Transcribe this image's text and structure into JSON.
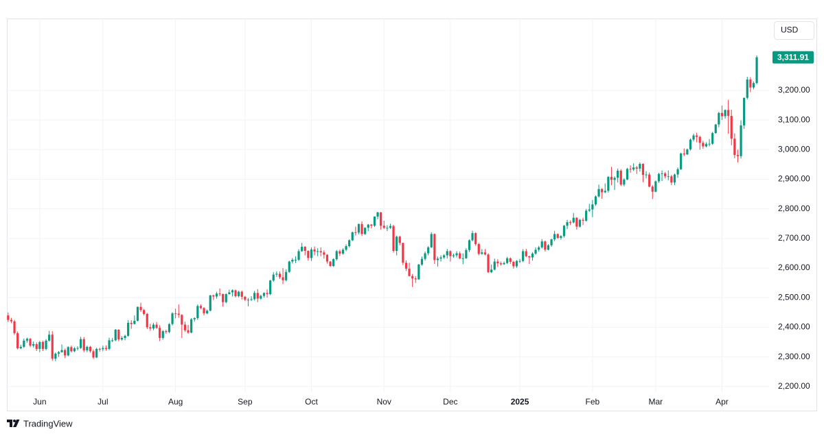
{
  "chart_data": {
    "type": "candlestick",
    "currency": "USD",
    "brand": "TradingView",
    "last_value_label": "3,311.91",
    "up_color": "#089981",
    "down_color": "#f23645",
    "grid": true,
    "xlim": [
      -0.4,
      240.9
    ],
    "xticks": [
      {
        "value": 10,
        "label": "Jun"
      },
      {
        "value": 30,
        "label": "Jul"
      },
      {
        "value": 53,
        "label": "Aug"
      },
      {
        "value": 75,
        "label": "Sep"
      },
      {
        "value": 96,
        "label": "Oct"
      },
      {
        "value": 119,
        "label": "Nov"
      },
      {
        "value": 140,
        "label": "Dec"
      },
      {
        "value": 162,
        "label": "2025"
      },
      {
        "value": 185,
        "label": "Feb"
      },
      {
        "value": 205,
        "label": "Mar"
      },
      {
        "value": 226,
        "label": "Apr"
      }
    ],
    "ylim": [
      2181,
      3443
    ],
    "yticks": [
      {
        "value": 2200,
        "label": "2,200.00"
      },
      {
        "value": 2300,
        "label": "2,300.00"
      },
      {
        "value": 2400,
        "label": "2,400.00"
      },
      {
        "value": 2500,
        "label": "2,500.00"
      },
      {
        "value": 2600,
        "label": "2,600.00"
      },
      {
        "value": 2700,
        "label": "2,700.00"
      },
      {
        "value": 2800,
        "label": "2,800.00"
      },
      {
        "value": 2900,
        "label": "2,900.00"
      },
      {
        "value": 3000,
        "label": "3,000.00"
      },
      {
        "value": 3100,
        "label": "3,100.00"
      },
      {
        "value": 3200,
        "label": "3,200.00"
      }
    ],
    "candles": [
      [
        2440,
        2450,
        2418,
        2425
      ],
      [
        2425,
        2432,
        2414,
        2420
      ],
      [
        2420,
        2425,
        2374,
        2380
      ],
      [
        2380,
        2386,
        2325,
        2329
      ],
      [
        2329,
        2341,
        2326,
        2334
      ],
      [
        2334,
        2362,
        2330,
        2355
      ],
      [
        2355,
        2365,
        2348,
        2361
      ],
      [
        2361,
        2364,
        2333,
        2338
      ],
      [
        2338,
        2352,
        2332,
        2343
      ],
      [
        2343,
        2349,
        2320,
        2327
      ],
      [
        2327,
        2354,
        2316,
        2350
      ],
      [
        2350,
        2355,
        2320,
        2327
      ],
      [
        2327,
        2360,
        2322,
        2355
      ],
      [
        2355,
        2388,
        2352,
        2375
      ],
      [
        2375,
        2387,
        2287,
        2294
      ],
      [
        2294,
        2315,
        2286,
        2311
      ],
      [
        2311,
        2320,
        2300,
        2316
      ],
      [
        2316,
        2342,
        2314,
        2323
      ],
      [
        2323,
        2328,
        2296,
        2305
      ],
      [
        2305,
        2336,
        2302,
        2333
      ],
      [
        2333,
        2338,
        2315,
        2319
      ],
      [
        2319,
        2333,
        2316,
        2329
      ],
      [
        2329,
        2336,
        2322,
        2330
      ],
      [
        2330,
        2368,
        2327,
        2360
      ],
      [
        2360,
        2367,
        2316,
        2322
      ],
      [
        2322,
        2338,
        2316,
        2334
      ],
      [
        2334,
        2337,
        2314,
        2319
      ],
      [
        2319,
        2325,
        2293,
        2298
      ],
      [
        2298,
        2331,
        2296,
        2327
      ],
      [
        2327,
        2331,
        2318,
        2326
      ],
      [
        2326,
        2338,
        2319,
        2330
      ],
      [
        2330,
        2339,
        2321,
        2327
      ],
      [
        2327,
        2365,
        2323,
        2356
      ],
      [
        2356,
        2364,
        2350,
        2356
      ],
      [
        2356,
        2394,
        2353,
        2392
      ],
      [
        2392,
        2393,
        2353,
        2359
      ],
      [
        2359,
        2370,
        2355,
        2364
      ],
      [
        2364,
        2375,
        2356,
        2371
      ],
      [
        2371,
        2424,
        2368,
        2415
      ],
      [
        2415,
        2424,
        2395,
        2411
      ],
      [
        2411,
        2440,
        2410,
        2422
      ],
      [
        2422,
        2470,
        2420,
        2469
      ],
      [
        2469,
        2483,
        2452,
        2458
      ],
      [
        2458,
        2462,
        2440,
        2445
      ],
      [
        2445,
        2449,
        2394,
        2400
      ],
      [
        2400,
        2412,
        2388,
        2396
      ],
      [
        2396,
        2415,
        2390,
        2409
      ],
      [
        2409,
        2418,
        2395,
        2398
      ],
      [
        2398,
        2407,
        2353,
        2364
      ],
      [
        2364,
        2391,
        2358,
        2387
      ],
      [
        2387,
        2392,
        2378,
        2384
      ],
      [
        2384,
        2414,
        2380,
        2411
      ],
      [
        2411,
        2451,
        2406,
        2447
      ],
      [
        2447,
        2463,
        2430,
        2446
      ],
      [
        2446,
        2477,
        2432,
        2442
      ],
      [
        2442,
        2444,
        2364,
        2409
      ],
      [
        2409,
        2419,
        2384,
        2390
      ],
      [
        2390,
        2408,
        2378,
        2382
      ],
      [
        2382,
        2431,
        2380,
        2427
      ],
      [
        2427,
        2434,
        2419,
        2431
      ],
      [
        2431,
        2477,
        2425,
        2472
      ],
      [
        2472,
        2477,
        2461,
        2465
      ],
      [
        2465,
        2468,
        2440,
        2447
      ],
      [
        2447,
        2460,
        2444,
        2456
      ],
      [
        2456,
        2509,
        2454,
        2508
      ],
      [
        2508,
        2510,
        2492,
        2504
      ],
      [
        2504,
        2520,
        2497,
        2514
      ],
      [
        2514,
        2531,
        2505,
        2512
      ],
      [
        2512,
        2514,
        2470,
        2485
      ],
      [
        2485,
        2515,
        2481,
        2512
      ],
      [
        2512,
        2527,
        2511,
        2518
      ],
      [
        2518,
        2528,
        2504,
        2525
      ],
      [
        2525,
        2527,
        2501,
        2505
      ],
      [
        2505,
        2524,
        2501,
        2520
      ],
      [
        2520,
        2524,
        2494,
        2503
      ],
      [
        2503,
        2506,
        2489,
        2493
      ],
      [
        2493,
        2499,
        2471,
        2493
      ],
      [
        2493,
        2505,
        2489,
        2495
      ],
      [
        2495,
        2523,
        2490,
        2516
      ],
      [
        2516,
        2529,
        2485,
        2497
      ],
      [
        2497,
        2510,
        2493,
        2506
      ],
      [
        2506,
        2518,
        2500,
        2516
      ],
      [
        2516,
        2528,
        2500,
        2512
      ],
      [
        2512,
        2560,
        2509,
        2558
      ],
      [
        2558,
        2586,
        2554,
        2578
      ],
      [
        2578,
        2589,
        2570,
        2581
      ],
      [
        2581,
        2589,
        2563,
        2569
      ],
      [
        2569,
        2600,
        2546,
        2559
      ],
      [
        2559,
        2596,
        2555,
        2587
      ],
      [
        2587,
        2625,
        2584,
        2622
      ],
      [
        2622,
        2634,
        2615,
        2628
      ],
      [
        2628,
        2640,
        2617,
        2628
      ],
      [
        2628,
        2664,
        2624,
        2657
      ],
      [
        2657,
        2685,
        2655,
        2672
      ],
      [
        2672,
        2674,
        2643,
        2658
      ],
      [
        2658,
        2660,
        2625,
        2634
      ],
      [
        2634,
        2670,
        2624,
        2663
      ],
      [
        2663,
        2673,
        2643,
        2656
      ],
      [
        2656,
        2667,
        2640,
        2657
      ],
      [
        2657,
        2670,
        2640,
        2653
      ],
      [
        2653,
        2660,
        2632,
        2645
      ],
      [
        2645,
        2647,
        2615,
        2622
      ],
      [
        2622,
        2624,
        2604,
        2607
      ],
      [
        2607,
        2633,
        2604,
        2630
      ],
      [
        2630,
        2661,
        2625,
        2657
      ],
      [
        2657,
        2662,
        2641,
        2649
      ],
      [
        2649,
        2667,
        2645,
        2662
      ],
      [
        2662,
        2680,
        2657,
        2674
      ],
      [
        2674,
        2697,
        2670,
        2694
      ],
      [
        2694,
        2723,
        2691,
        2721
      ],
      [
        2721,
        2740,
        2710,
        2720
      ],
      [
        2720,
        2750,
        2714,
        2749
      ],
      [
        2749,
        2758,
        2708,
        2715
      ],
      [
        2715,
        2738,
        2712,
        2736
      ],
      [
        2736,
        2749,
        2725,
        2747
      ],
      [
        2747,
        2749,
        2734,
        2743
      ],
      [
        2743,
        2775,
        2739,
        2774
      ],
      [
        2774,
        2790,
        2765,
        2788
      ],
      [
        2788,
        2790,
        2730,
        2743
      ],
      [
        2743,
        2760,
        2732,
        2736
      ],
      [
        2736,
        2745,
        2725,
        2736
      ],
      [
        2736,
        2750,
        2732,
        2742
      ],
      [
        2742,
        2746,
        2652,
        2658
      ],
      [
        2658,
        2710,
        2643,
        2706
      ],
      [
        2706,
        2709,
        2677,
        2685
      ],
      [
        2685,
        2686,
        2610,
        2618
      ],
      [
        2618,
        2626,
        2590,
        2598
      ],
      [
        2598,
        2618,
        2572,
        2573
      ],
      [
        2573,
        2580,
        2536,
        2565
      ],
      [
        2565,
        2573,
        2550,
        2562
      ],
      [
        2562,
        2614,
        2560,
        2612
      ],
      [
        2612,
        2639,
        2608,
        2631
      ],
      [
        2631,
        2656,
        2625,
        2650
      ],
      [
        2650,
        2674,
        2643,
        2670
      ],
      [
        2670,
        2721,
        2668,
        2715
      ],
      [
        2715,
        2717,
        2614,
        2627
      ],
      [
        2627,
        2639,
        2605,
        2632
      ],
      [
        2632,
        2643,
        2622,
        2636
      ],
      [
        2636,
        2647,
        2631,
        2643
      ],
      [
        2643,
        2665,
        2632,
        2657
      ],
      [
        2657,
        2660,
        2622,
        2640
      ],
      [
        2640,
        2649,
        2635,
        2643
      ],
      [
        2643,
        2657,
        2636,
        2650
      ],
      [
        2650,
        2656,
        2630,
        2633
      ],
      [
        2633,
        2650,
        2613,
        2633
      ],
      [
        2633,
        2667,
        2631,
        2661
      ],
      [
        2661,
        2697,
        2654,
        2694
      ],
      [
        2694,
        2726,
        2690,
        2718
      ],
      [
        2718,
        2721,
        2676,
        2681
      ],
      [
        2681,
        2685,
        2643,
        2648
      ],
      [
        2648,
        2664,
        2645,
        2653
      ],
      [
        2653,
        2664,
        2643,
        2646
      ],
      [
        2646,
        2650,
        2583,
        2586
      ],
      [
        2586,
        2612,
        2583,
        2595
      ],
      [
        2595,
        2632,
        2592,
        2622
      ],
      [
        2622,
        2630,
        2604,
        2616
      ],
      [
        2616,
        2622,
        2608,
        2613
      ],
      [
        2613,
        2622,
        2611,
        2617
      ],
      [
        2617,
        2638,
        2614,
        2633
      ],
      [
        2633,
        2636,
        2614,
        2621
      ],
      [
        2621,
        2624,
        2598,
        2606
      ],
      [
        2606,
        2627,
        2601,
        2624
      ],
      [
        2624,
        2631,
        2617,
        2624
      ],
      [
        2624,
        2664,
        2620,
        2657
      ],
      [
        2657,
        2665,
        2637,
        2640
      ],
      [
        2640,
        2642,
        2614,
        2636
      ],
      [
        2636,
        2654,
        2625,
        2649
      ],
      [
        2649,
        2670,
        2645,
        2662
      ],
      [
        2662,
        2675,
        2656,
        2670
      ],
      [
        2670,
        2698,
        2666,
        2690
      ],
      [
        2690,
        2693,
        2656,
        2662
      ],
      [
        2662,
        2681,
        2660,
        2677
      ],
      [
        2677,
        2699,
        2672,
        2697
      ],
      [
        2697,
        2726,
        2691,
        2715
      ],
      [
        2715,
        2717,
        2699,
        2702
      ],
      [
        2702,
        2711,
        2696,
        2708
      ],
      [
        2708,
        2746,
        2703,
        2743
      ],
      [
        2743,
        2763,
        2732,
        2755
      ],
      [
        2755,
        2761,
        2745,
        2754
      ],
      [
        2754,
        2786,
        2751,
        2770
      ],
      [
        2770,
        2772,
        2730,
        2740
      ],
      [
        2740,
        2766,
        2737,
        2763
      ],
      [
        2763,
        2770,
        2745,
        2760
      ],
      [
        2760,
        2800,
        2757,
        2794
      ],
      [
        2794,
        2817,
        2790,
        2798
      ],
      [
        2798,
        2830,
        2772,
        2815
      ],
      [
        2815,
        2845,
        2810,
        2842
      ],
      [
        2842,
        2882,
        2838,
        2867
      ],
      [
        2867,
        2870,
        2834,
        2856
      ],
      [
        2856,
        2886,
        2853,
        2861
      ],
      [
        2861,
        2911,
        2855,
        2908
      ],
      [
        2908,
        2942,
        2880,
        2898
      ],
      [
        2898,
        2910,
        2864,
        2905
      ],
      [
        2905,
        2936,
        2889,
        2929
      ],
      [
        2929,
        2934,
        2877,
        2882
      ],
      [
        2882,
        2904,
        2876,
        2899
      ],
      [
        2899,
        2939,
        2897,
        2935
      ],
      [
        2935,
        2947,
        2922,
        2933
      ],
      [
        2933,
        2954,
        2928,
        2940
      ],
      [
        2940,
        2945,
        2918,
        2936
      ],
      [
        2936,
        2957,
        2926,
        2952
      ],
      [
        2952,
        2954,
        2890,
        2915
      ],
      [
        2915,
        2927,
        2903,
        2916
      ],
      [
        2916,
        2923,
        2873,
        2875
      ],
      [
        2875,
        2880,
        2833,
        2858
      ],
      [
        2858,
        2896,
        2856,
        2893
      ],
      [
        2893,
        2922,
        2888,
        2918
      ],
      [
        2918,
        2930,
        2894,
        2920
      ],
      [
        2920,
        2925,
        2903,
        2910
      ],
      [
        2910,
        2930,
        2897,
        2910
      ],
      [
        2910,
        2915,
        2880,
        2889
      ],
      [
        2889,
        2919,
        2880,
        2916
      ],
      [
        2916,
        2940,
        2905,
        2934
      ],
      [
        2934,
        2990,
        2931,
        2987
      ],
      [
        2987,
        3004,
        2978,
        2984
      ],
      [
        2984,
        3004,
        2982,
        3001
      ],
      [
        3001,
        3038,
        2997,
        3034
      ],
      [
        3034,
        3054,
        3028,
        3048
      ],
      [
        3048,
        3057,
        3025,
        3043
      ],
      [
        3043,
        3047,
        3000,
        3023
      ],
      [
        3023,
        3030,
        3003,
        3011
      ],
      [
        3011,
        3025,
        3008,
        3019
      ],
      [
        3019,
        3036,
        3011,
        3020
      ],
      [
        3020,
        3060,
        3016,
        3056
      ],
      [
        3056,
        3087,
        3054,
        3085
      ],
      [
        3085,
        3128,
        3076,
        3124
      ],
      [
        3124,
        3149,
        3100,
        3113
      ],
      [
        3113,
        3136,
        3105,
        3134
      ],
      [
        3134,
        3168,
        3054,
        3114
      ],
      [
        3114,
        3135,
        3015,
        3037
      ],
      [
        3037,
        3055,
        2971,
        2982
      ],
      [
        2982,
        3000,
        2957,
        2978
      ],
      [
        2978,
        3099,
        2970,
        3082
      ],
      [
        3082,
        3176,
        3070,
        3175
      ],
      [
        3175,
        3246,
        3170,
        3237
      ],
      [
        3237,
        3245,
        3194,
        3210
      ],
      [
        3210,
        3230,
        3204,
        3225
      ],
      [
        3225,
        3318,
        3221,
        3311.91
      ]
    ]
  }
}
